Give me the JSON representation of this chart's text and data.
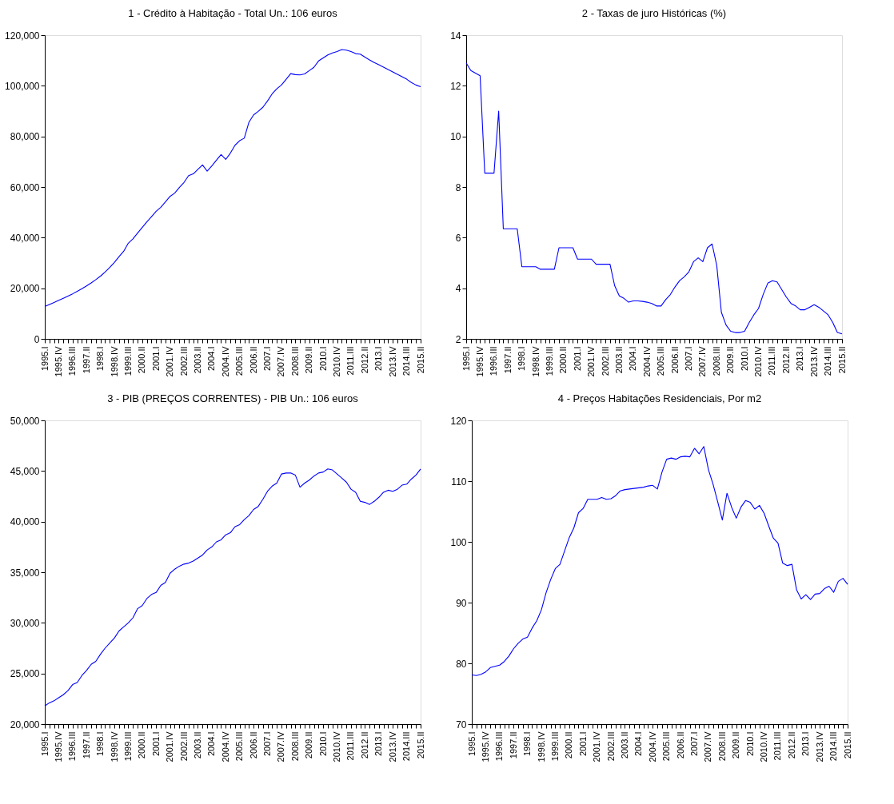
{
  "chart_data": [
    {
      "type": "line",
      "title": "1 - Crédito à Habitação - Total Un.: 106 euros",
      "categories": [
        "1995.I",
        null,
        null,
        "1995.IV",
        null,
        null,
        "1996.III",
        null,
        null,
        "1997.II",
        null,
        null,
        "1998.I",
        null,
        null,
        "1998.IV",
        null,
        null,
        "1999.III",
        null,
        null,
        "2000.II",
        null,
        null,
        "2001.I",
        null,
        null,
        "2001.IV",
        null,
        null,
        "2002.III",
        null,
        null,
        "2003.II",
        null,
        null,
        "2004.I",
        null,
        null,
        "2004.IV",
        null,
        null,
        "2005.III",
        null,
        null,
        "2006.II",
        null,
        null,
        "2007.I",
        null,
        null,
        "2007.IV",
        null,
        null,
        "2008.III",
        null,
        null,
        "2009.II",
        null,
        null,
        "2010.I",
        null,
        null,
        "2010.IV",
        null,
        null,
        "2011.III",
        null,
        null,
        "2012.II",
        null,
        null,
        "2013.I",
        null,
        null,
        "2013.IV",
        null,
        null,
        "2014.III",
        null,
        null,
        "2015.II"
      ],
      "ylim": [
        0,
        120000
      ],
      "yticks": [
        0,
        {
          "value": 20000,
          "label": "20,000"
        },
        {
          "value": 40000,
          "label": "40,000"
        },
        {
          "value": 60000,
          "label": "60,000"
        },
        {
          "value": 80000,
          "label": "80,000"
        },
        {
          "value": 100000,
          "label": "100,000"
        },
        {
          "value": 120000,
          "label": "120,000"
        }
      ],
      "series": [
        {
          "color": "#0000ff",
          "values": [
            12800,
            13600,
            14400,
            15200,
            16000,
            16900,
            17800,
            18800,
            19800,
            20900,
            22100,
            23400,
            24800,
            26400,
            28200,
            30200,
            32500,
            34600,
            37800,
            39500,
            41800,
            44000,
            46200,
            48300,
            50400,
            52000,
            54100,
            56300,
            57600,
            59800,
            61800,
            64500,
            65200,
            67000,
            68700,
            66300,
            68300,
            70600,
            72800,
            70900,
            73400,
            76500,
            78300,
            79300,
            85600,
            88500,
            89900,
            91500,
            94000,
            96800,
            98800,
            100300,
            102500,
            104800,
            104400,
            104300,
            104700,
            106000,
            107300,
            109800,
            111000,
            112200,
            113000,
            113500,
            114300,
            114100,
            113500,
            112700,
            112500,
            111300,
            110200,
            109200,
            108300,
            107400,
            106400,
            105500,
            104500,
            103600,
            102600,
            101300,
            100300,
            99600
          ]
        }
      ]
    },
    {
      "type": "line",
      "title": "2 - Taxas de juro Históricas  (%)",
      "categories": [
        "1995.I",
        null,
        null,
        "1995.IV",
        null,
        null,
        "1996.III",
        null,
        null,
        "1997.II",
        null,
        null,
        "1998.I",
        null,
        null,
        "1998.IV",
        null,
        null,
        "1999.III",
        null,
        null,
        "2000.II",
        null,
        null,
        "2001.I",
        null,
        null,
        "2001.IV",
        null,
        null,
        "2002.III",
        null,
        null,
        "2003.II",
        null,
        null,
        "2004.I",
        null,
        null,
        "2004.IV",
        null,
        null,
        "2005.III",
        null,
        null,
        "2006.II",
        null,
        null,
        "2007.I",
        null,
        null,
        "2007.IV",
        null,
        null,
        "2008.III",
        null,
        null,
        "2009.II",
        null,
        null,
        "2010.I",
        null,
        null,
        "2010.IV",
        null,
        null,
        "2011.III",
        null,
        null,
        "2012.II",
        null,
        null,
        "2013.I",
        null,
        null,
        "2013.IV",
        null,
        null,
        "2014.III",
        null,
        null,
        "2015.II"
      ],
      "ylim": [
        2,
        14
      ],
      "yticks": [
        2,
        4,
        6,
        8,
        10,
        12,
        14
      ],
      "series": [
        {
          "color": "#0000ff",
          "values": [
            12.9,
            12.6,
            12.5,
            12.4,
            8.55,
            8.55,
            8.55,
            11.0,
            6.35,
            6.35,
            6.35,
            6.35,
            4.85,
            4.85,
            4.85,
            4.85,
            4.75,
            4.75,
            4.75,
            4.75,
            5.6,
            5.6,
            5.6,
            5.6,
            5.15,
            5.15,
            5.15,
            5.15,
            4.95,
            4.95,
            4.95,
            4.95,
            4.1,
            3.7,
            3.6,
            3.45,
            3.5,
            3.5,
            3.48,
            3.45,
            3.4,
            3.3,
            3.3,
            3.55,
            3.75,
            4.05,
            4.3,
            4.45,
            4.65,
            5.05,
            5.2,
            5.05,
            5.6,
            5.75,
            4.9,
            3.05,
            2.55,
            2.3,
            2.25,
            2.25,
            2.3,
            2.65,
            2.95,
            3.2,
            3.75,
            4.2,
            4.3,
            4.25,
            3.95,
            3.65,
            3.4,
            3.3,
            3.15,
            3.15,
            3.25,
            3.35,
            3.25,
            3.1,
            2.95,
            2.65,
            2.25,
            2.2
          ]
        }
      ]
    },
    {
      "type": "line",
      "title": "3 - PIB (PREÇOS CORRENTES) - PIB Un.: 106 euros",
      "categories": [
        "1995.I",
        null,
        null,
        "1995.IV",
        null,
        null,
        "1996.III",
        null,
        null,
        "1997.II",
        null,
        null,
        "1998.I",
        null,
        null,
        "1998.IV",
        null,
        null,
        "1999.III",
        null,
        null,
        "2000.II",
        null,
        null,
        "2001.I",
        null,
        null,
        "2001.IV",
        null,
        null,
        "2002.III",
        null,
        null,
        "2003.II",
        null,
        null,
        "2004.I",
        null,
        null,
        "2004.IV",
        null,
        null,
        "2005.III",
        null,
        null,
        "2006.II",
        null,
        null,
        "2007.I",
        null,
        null,
        "2007.IV",
        null,
        null,
        "2008.III",
        null,
        null,
        "2009.II",
        null,
        null,
        "2010.I",
        null,
        null,
        "2010.IV",
        null,
        null,
        "2011.III",
        null,
        null,
        "2012.II",
        null,
        null,
        "2013.I",
        null,
        null,
        "2013.IV",
        null,
        null,
        "2014.III",
        null,
        null,
        "2015.II"
      ],
      "ylim": [
        20000,
        50000
      ],
      "yticks": [
        {
          "value": 20000,
          "label": "20,000"
        },
        {
          "value": 25000,
          "label": "25,000"
        },
        {
          "value": 30000,
          "label": "30,000"
        },
        {
          "value": 35000,
          "label": "35,000"
        },
        {
          "value": 40000,
          "label": "40,000"
        },
        {
          "value": 45000,
          "label": "45,000"
        },
        {
          "value": 50000,
          "label": "50,000"
        }
      ],
      "series": [
        {
          "color": "#0000ff",
          "values": [
            21800,
            22100,
            22300,
            22600,
            22900,
            23300,
            23900,
            24100,
            24800,
            25300,
            25900,
            26200,
            26900,
            27500,
            28000,
            28500,
            29200,
            29600,
            30000,
            30500,
            31400,
            31700,
            32400,
            32800,
            33000,
            33700,
            34000,
            34900,
            35300,
            35600,
            35800,
            35900,
            36100,
            36400,
            36700,
            37200,
            37500,
            38000,
            38200,
            38700,
            38900,
            39500,
            39700,
            40200,
            40600,
            41200,
            41500,
            42200,
            43000,
            43500,
            43800,
            44700,
            44800,
            44800,
            44600,
            43400,
            43800,
            44100,
            44500,
            44800,
            44900,
            45200,
            45100,
            44700,
            44300,
            43900,
            43200,
            42900,
            42000,
            41900,
            41700,
            42000,
            42400,
            42900,
            43100,
            43000,
            43200,
            43600,
            43700,
            44200,
            44600,
            45200
          ]
        }
      ]
    },
    {
      "type": "line",
      "title": "4 - Preços Habitações Residenciais, Por m2",
      "categories": [
        "1995.I",
        null,
        null,
        "1995.IV",
        null,
        null,
        "1996.III",
        null,
        null,
        "1997.II",
        null,
        null,
        "1998.I",
        null,
        null,
        "1998.IV",
        null,
        null,
        "1999.III",
        null,
        null,
        "2000.II",
        null,
        null,
        "2001.I",
        null,
        null,
        "2001.IV",
        null,
        null,
        "2002.III",
        null,
        null,
        "2003.II",
        null,
        null,
        "2004.I",
        null,
        null,
        "2004.IV",
        null,
        null,
        "2005.III",
        null,
        null,
        "2006.II",
        null,
        null,
        "2007.I",
        null,
        null,
        "2007.IV",
        null,
        null,
        "2008.III",
        null,
        null,
        "2009.II",
        null,
        null,
        "2010.I",
        null,
        null,
        "2010.IV",
        null,
        null,
        "2011.III",
        null,
        null,
        "2012.II",
        null,
        null,
        "2013.I",
        null,
        null,
        "2013.IV",
        null,
        null,
        "2014.III",
        null,
        null,
        "2015.II"
      ],
      "ylim": [
        70,
        120
      ],
      "yticks": [
        70,
        80,
        90,
        100,
        110,
        120
      ],
      "series": [
        {
          "color": "#0000ff",
          "values": [
            78.1,
            78.0,
            78.2,
            78.6,
            79.3,
            79.5,
            79.7,
            80.3,
            81.2,
            82.4,
            83.3,
            84.0,
            84.3,
            85.8,
            87.0,
            88.8,
            91.6,
            93.8,
            95.6,
            96.3,
            98.5,
            100.7,
            102.3,
            104.8,
            105.5,
            107.0,
            107.0,
            107.0,
            107.3,
            107.0,
            107.1,
            107.6,
            108.4,
            108.6,
            108.7,
            108.8,
            108.9,
            109.0,
            109.2,
            109.3,
            108.7,
            111.5,
            113.6,
            113.8,
            113.6,
            114.0,
            114.1,
            114.0,
            115.4,
            114.5,
            115.7,
            111.9,
            109.5,
            106.6,
            103.6,
            108.0,
            105.7,
            103.9,
            105.7,
            106.8,
            106.5,
            105.4,
            106.0,
            104.7,
            102.6,
            100.6,
            99.8,
            96.5,
            96.1,
            96.3,
            92.1,
            90.6,
            91.3,
            90.5,
            91.4,
            91.5,
            92.3,
            92.7,
            91.7,
            93.5,
            94.0,
            93.0
          ]
        }
      ]
    }
  ]
}
